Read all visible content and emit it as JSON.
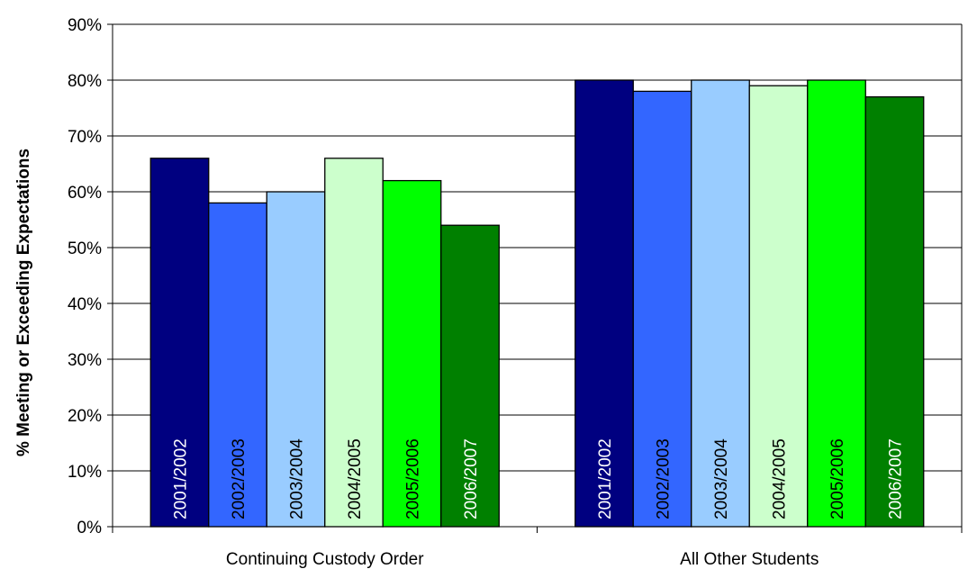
{
  "chart_data": {
    "type": "bar",
    "title": "",
    "ylabel": "% Meeting or Exceeding Expectations",
    "xlabel": "",
    "ylim": [
      0,
      90
    ],
    "yticks": [
      0,
      10,
      20,
      30,
      40,
      50,
      60,
      70,
      80,
      90
    ],
    "ytick_suffix": "%",
    "grid": true,
    "categories": [
      "Continuing Custody Order",
      "All Other Students"
    ],
    "series": [
      {
        "name": "2001/2002",
        "color": "#000080",
        "label_color": "#ffffff",
        "values": [
          66,
          80
        ]
      },
      {
        "name": "2002/2003",
        "color": "#3366ff",
        "label_color": "#000000",
        "values": [
          58,
          78
        ]
      },
      {
        "name": "2003/2004",
        "color": "#99ccff",
        "label_color": "#000000",
        "values": [
          60,
          80
        ]
      },
      {
        "name": "2004/2005",
        "color": "#ccffcc",
        "label_color": "#000000",
        "values": [
          66,
          79
        ]
      },
      {
        "name": "2005/2006",
        "color": "#00ff00",
        "label_color": "#000000",
        "values": [
          62,
          80
        ]
      },
      {
        "name": "2006/2007",
        "color": "#008000",
        "label_color": "#ffffff",
        "values": [
          54,
          77
        ]
      }
    ]
  }
}
